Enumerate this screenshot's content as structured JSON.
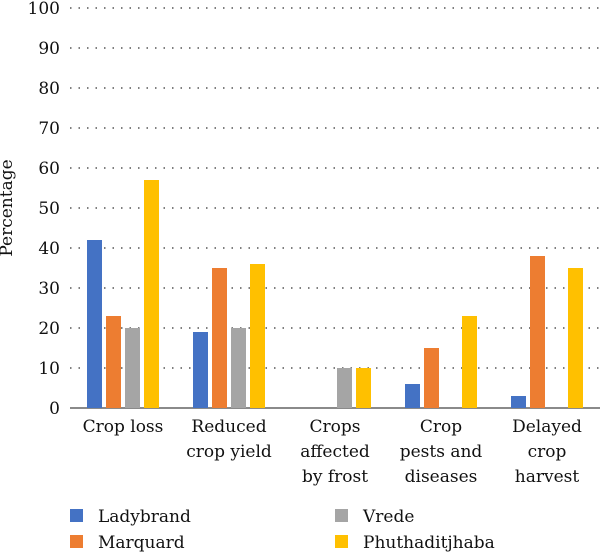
{
  "chart_data": {
    "type": "bar",
    "ylabel": "Percentage",
    "ylim": [
      0,
      100
    ],
    "yticks": [
      0,
      10,
      20,
      30,
      40,
      50,
      60,
      70,
      80,
      90,
      100
    ],
    "grid": true,
    "legend_position": "bottom",
    "categories": [
      [
        "Crop loss"
      ],
      [
        "Reduced",
        "crop yield"
      ],
      [
        "Crops",
        "affected",
        "by frost"
      ],
      [
        "Crop",
        "pests and",
        "diseases"
      ],
      [
        "Delayed",
        "crop",
        "harvest"
      ]
    ],
    "series": [
      {
        "name": "Ladybrand",
        "color": "#4472c4",
        "values": [
          42,
          19,
          0,
          6,
          3
        ]
      },
      {
        "name": "Marquard",
        "color": "#ed7d31",
        "values": [
          23,
          35,
          0,
          15,
          38
        ]
      },
      {
        "name": "Vrede",
        "color": "#a5a5a5",
        "values": [
          20,
          20,
          10,
          0,
          0
        ]
      },
      {
        "name": "Phuthaditjhaba",
        "color": "#ffc000",
        "values": [
          57,
          36,
          10,
          23,
          35
        ]
      }
    ]
  }
}
